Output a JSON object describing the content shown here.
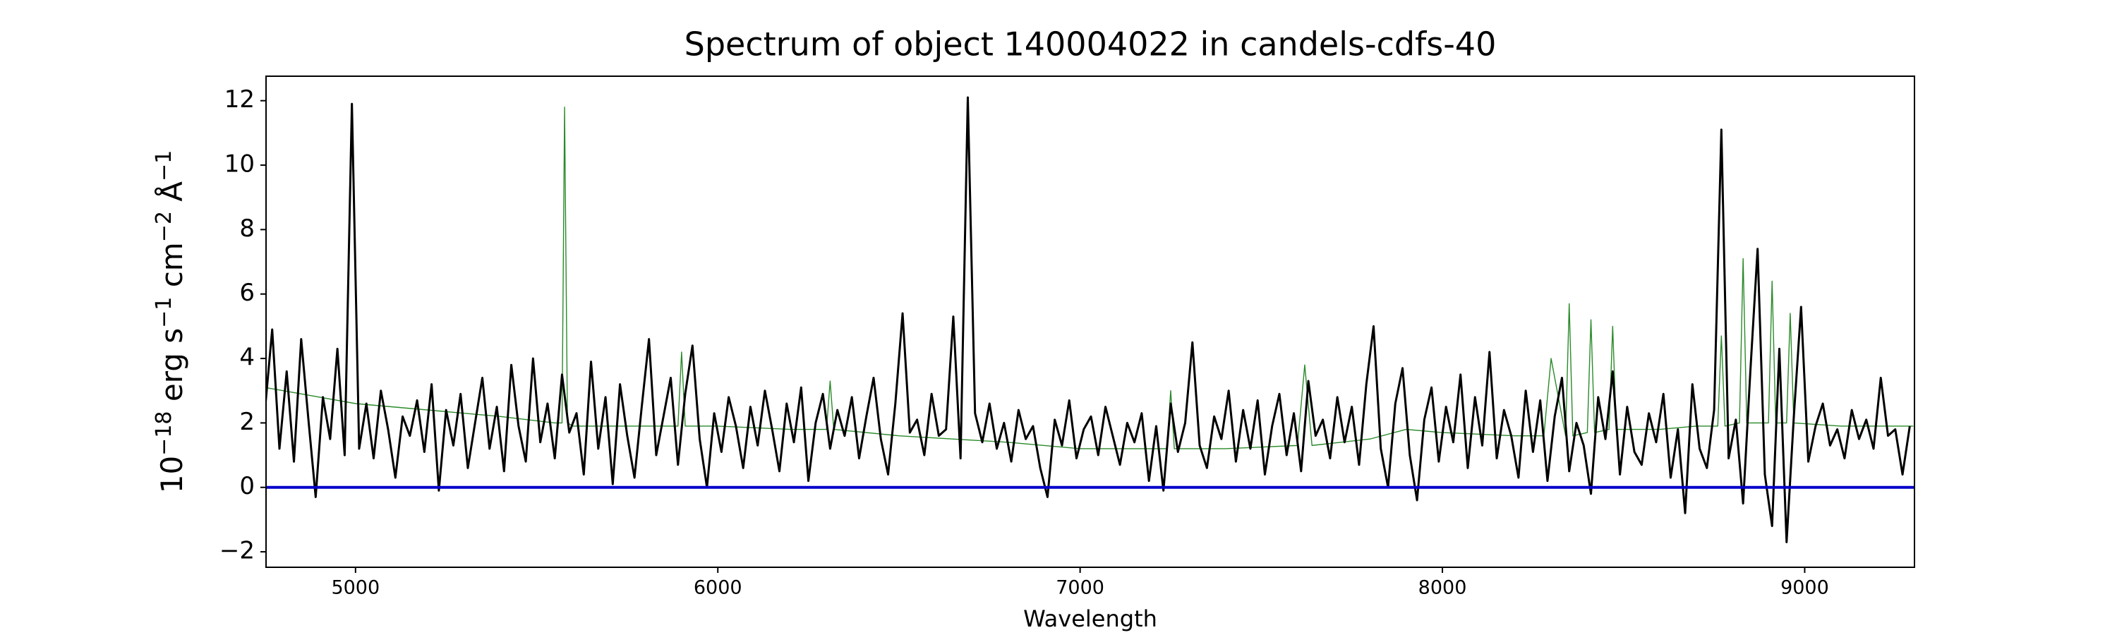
{
  "chart_data": {
    "type": "line",
    "title": "Spectrum of object 140004022 in candels-cdfs-40",
    "xlabel": "Wavelength",
    "ylabel": [
      "10",
      "−18",
      " erg s",
      "−1",
      " cm",
      "−2",
      " Å",
      "−1"
    ],
    "xlim": [
      4753,
      9303
    ],
    "ylim": [
      -2.48,
      12.76
    ],
    "xticks": [
      5000,
      6000,
      7000,
      8000,
      9000
    ],
    "yticks": [
      {
        "value": -2,
        "label": "−2"
      },
      0,
      2,
      4,
      6,
      8,
      10,
      12
    ],
    "grid": false,
    "series": [
      {
        "color": "#2a8a2a",
        "width": 1.4,
        "x": [
          4750,
          4800,
          4900,
          5000,
          5200,
          5400,
          5550,
          5570,
          5577,
          5585,
          5600,
          5800,
          5890,
          5900,
          5910,
          6000,
          6200,
          6300,
          6310,
          6320,
          6500,
          6800,
          7000,
          7200,
          7240,
          7250,
          7260,
          7400,
          7600,
          7620,
          7640,
          7800,
          7900,
          8000,
          8200,
          8280,
          8300,
          8340,
          8350,
          8360,
          8400,
          8410,
          8420,
          8460,
          8470,
          8480,
          8600,
          8700,
          8760,
          8770,
          8780,
          8820,
          8830,
          8840,
          8900,
          8910,
          8920,
          8950,
          8960,
          8970,
          9100,
          9300
        ],
        "values": [
          3.1,
          3.0,
          2.8,
          2.6,
          2.4,
          2.2,
          2.0,
          2.0,
          11.8,
          2.0,
          1.9,
          1.9,
          1.9,
          4.2,
          1.9,
          1.9,
          1.8,
          1.8,
          3.3,
          1.8,
          1.6,
          1.4,
          1.2,
          1.2,
          1.2,
          3.0,
          1.2,
          1.2,
          1.3,
          3.8,
          1.3,
          1.5,
          1.8,
          1.7,
          1.6,
          1.6,
          4.0,
          1.6,
          5.7,
          1.6,
          1.7,
          5.2,
          1.7,
          1.8,
          5.0,
          1.8,
          1.8,
          1.9,
          1.9,
          4.7,
          1.9,
          2.0,
          7.1,
          2.0,
          2.0,
          6.4,
          2.0,
          2.0,
          5.4,
          2.0,
          1.9,
          1.9
        ]
      },
      {
        "color": "#000000",
        "width": 3,
        "x": [
          4750,
          4770,
          4790,
          4810,
          4830,
          4850,
          4870,
          4890,
          4910,
          4930,
          4950,
          4970,
          4990,
          5010,
          5030,
          5050,
          5070,
          5090,
          5110,
          5130,
          5150,
          5170,
          5190,
          5210,
          5230,
          5250,
          5270,
          5290,
          5310,
          5330,
          5350,
          5370,
          5390,
          5410,
          5430,
          5450,
          5470,
          5490,
          5510,
          5530,
          5550,
          5570,
          5590,
          5610,
          5630,
          5650,
          5670,
          5690,
          5710,
          5730,
          5750,
          5770,
          5790,
          5810,
          5830,
          5850,
          5870,
          5890,
          5910,
          5930,
          5950,
          5970,
          5990,
          6010,
          6030,
          6050,
          6070,
          6090,
          6110,
          6130,
          6150,
          6170,
          6190,
          6210,
          6230,
          6250,
          6270,
          6290,
          6310,
          6330,
          6350,
          6370,
          6390,
          6410,
          6430,
          6450,
          6470,
          6490,
          6510,
          6530,
          6550,
          6570,
          6590,
          6610,
          6630,
          6650,
          6670,
          6690,
          6710,
          6730,
          6750,
          6770,
          6790,
          6810,
          6830,
          6850,
          6870,
          6890,
          6910,
          6930,
          6950,
          6970,
          6990,
          7010,
          7030,
          7050,
          7070,
          7090,
          7110,
          7130,
          7150,
          7170,
          7190,
          7210,
          7230,
          7250,
          7270,
          7290,
          7310,
          7330,
          7350,
          7370,
          7390,
          7410,
          7430,
          7450,
          7470,
          7490,
          7510,
          7530,
          7550,
          7570,
          7590,
          7610,
          7630,
          7650,
          7670,
          7690,
          7710,
          7730,
          7750,
          7770,
          7790,
          7810,
          7830,
          7850,
          7870,
          7890,
          7910,
          7930,
          7950,
          7970,
          7990,
          8010,
          8030,
          8050,
          8070,
          8090,
          8110,
          8130,
          8150,
          8170,
          8190,
          8210,
          8230,
          8250,
          8270,
          8290,
          8310,
          8330,
          8350,
          8370,
          8390,
          8410,
          8430,
          8450,
          8470,
          8490,
          8510,
          8530,
          8550,
          8570,
          8590,
          8610,
          8630,
          8650,
          8670,
          8690,
          8710,
          8730,
          8750,
          8770,
          8790,
          8810,
          8830,
          8850,
          8870,
          8890,
          8910,
          8930,
          8950,
          8970,
          8990,
          9010,
          9030,
          9050,
          9070,
          9090,
          9110,
          9130,
          9150,
          9170,
          9190,
          9210,
          9230,
          9250,
          9270,
          9290
        ],
        "values": [
          2.4,
          4.9,
          1.2,
          3.6,
          0.8,
          4.6,
          2.1,
          -0.3,
          2.8,
          1.5,
          4.3,
          1.0,
          11.9,
          1.2,
          2.6,
          0.9,
          3.0,
          1.8,
          0.3,
          2.2,
          1.6,
          2.7,
          1.1,
          3.2,
          -0.1,
          2.4,
          1.3,
          2.9,
          0.6,
          2.0,
          3.4,
          1.2,
          2.5,
          0.5,
          3.8,
          1.9,
          0.8,
          4.0,
          1.4,
          2.6,
          0.9,
          3.5,
          1.7,
          2.3,
          0.4,
          3.9,
          1.2,
          2.8,
          0.1,
          3.2,
          1.6,
          0.3,
          2.5,
          4.6,
          1.0,
          2.2,
          3.4,
          0.7,
          2.9,
          4.4,
          1.5,
          0.0,
          2.3,
          1.1,
          2.8,
          1.9,
          0.6,
          2.5,
          1.3,
          3.0,
          1.8,
          0.5,
          2.6,
          1.4,
          3.1,
          0.2,
          2.0,
          2.9,
          1.2,
          2.4,
          1.6,
          2.8,
          0.9,
          2.2,
          3.4,
          1.5,
          0.4,
          2.6,
          5.4,
          1.7,
          2.1,
          1.0,
          2.9,
          1.6,
          1.8,
          5.3,
          0.9,
          12.1,
          2.3,
          1.4,
          2.6,
          1.2,
          2.0,
          0.8,
          2.4,
          1.5,
          1.9,
          0.6,
          -0.3,
          2.1,
          1.3,
          2.7,
          0.9,
          1.8,
          2.2,
          1.0,
          2.5,
          1.6,
          0.7,
          2.0,
          1.4,
          2.3,
          0.2,
          1.9,
          -0.1,
          2.6,
          1.1,
          2.0,
          4.5,
          1.3,
          0.6,
          2.2,
          1.5,
          3.0,
          0.8,
          2.4,
          1.2,
          2.7,
          0.4,
          1.9,
          2.9,
          1.0,
          2.3,
          0.5,
          3.3,
          1.6,
          2.1,
          0.9,
          2.8,
          1.4,
          2.5,
          0.7,
          3.2,
          5.0,
          1.2,
          0.0,
          2.6,
          3.7,
          1.0,
          -0.4,
          2.1,
          3.1,
          0.8,
          2.5,
          1.4,
          3.5,
          0.6,
          2.8,
          1.3,
          4.2,
          0.9,
          2.4,
          1.6,
          0.3,
          3.0,
          1.1,
          2.7,
          0.2,
          2.2,
          3.4,
          0.5,
          2.0,
          1.3,
          -0.2,
          2.8,
          1.5,
          3.6,
          0.4,
          2.5,
          1.1,
          0.7,
          2.3,
          1.4,
          2.9,
          0.3,
          1.8,
          -0.8,
          3.2,
          1.2,
          0.6,
          2.4,
          11.1,
          0.9,
          2.1,
          -0.5,
          3.6,
          7.4,
          0.4,
          -1.2,
          4.3,
          -1.7,
          2.2,
          5.6,
          0.8,
          1.9,
          2.6,
          1.3,
          1.8,
          0.9,
          2.4,
          1.5,
          2.1,
          1.2,
          3.4,
          1.6,
          1.8,
          0.4,
          1.9
        ]
      },
      {
        "color": "#0000cc",
        "width": 4,
        "x": [
          4753,
          9303
        ],
        "values": [
          0,
          0
        ]
      }
    ]
  }
}
